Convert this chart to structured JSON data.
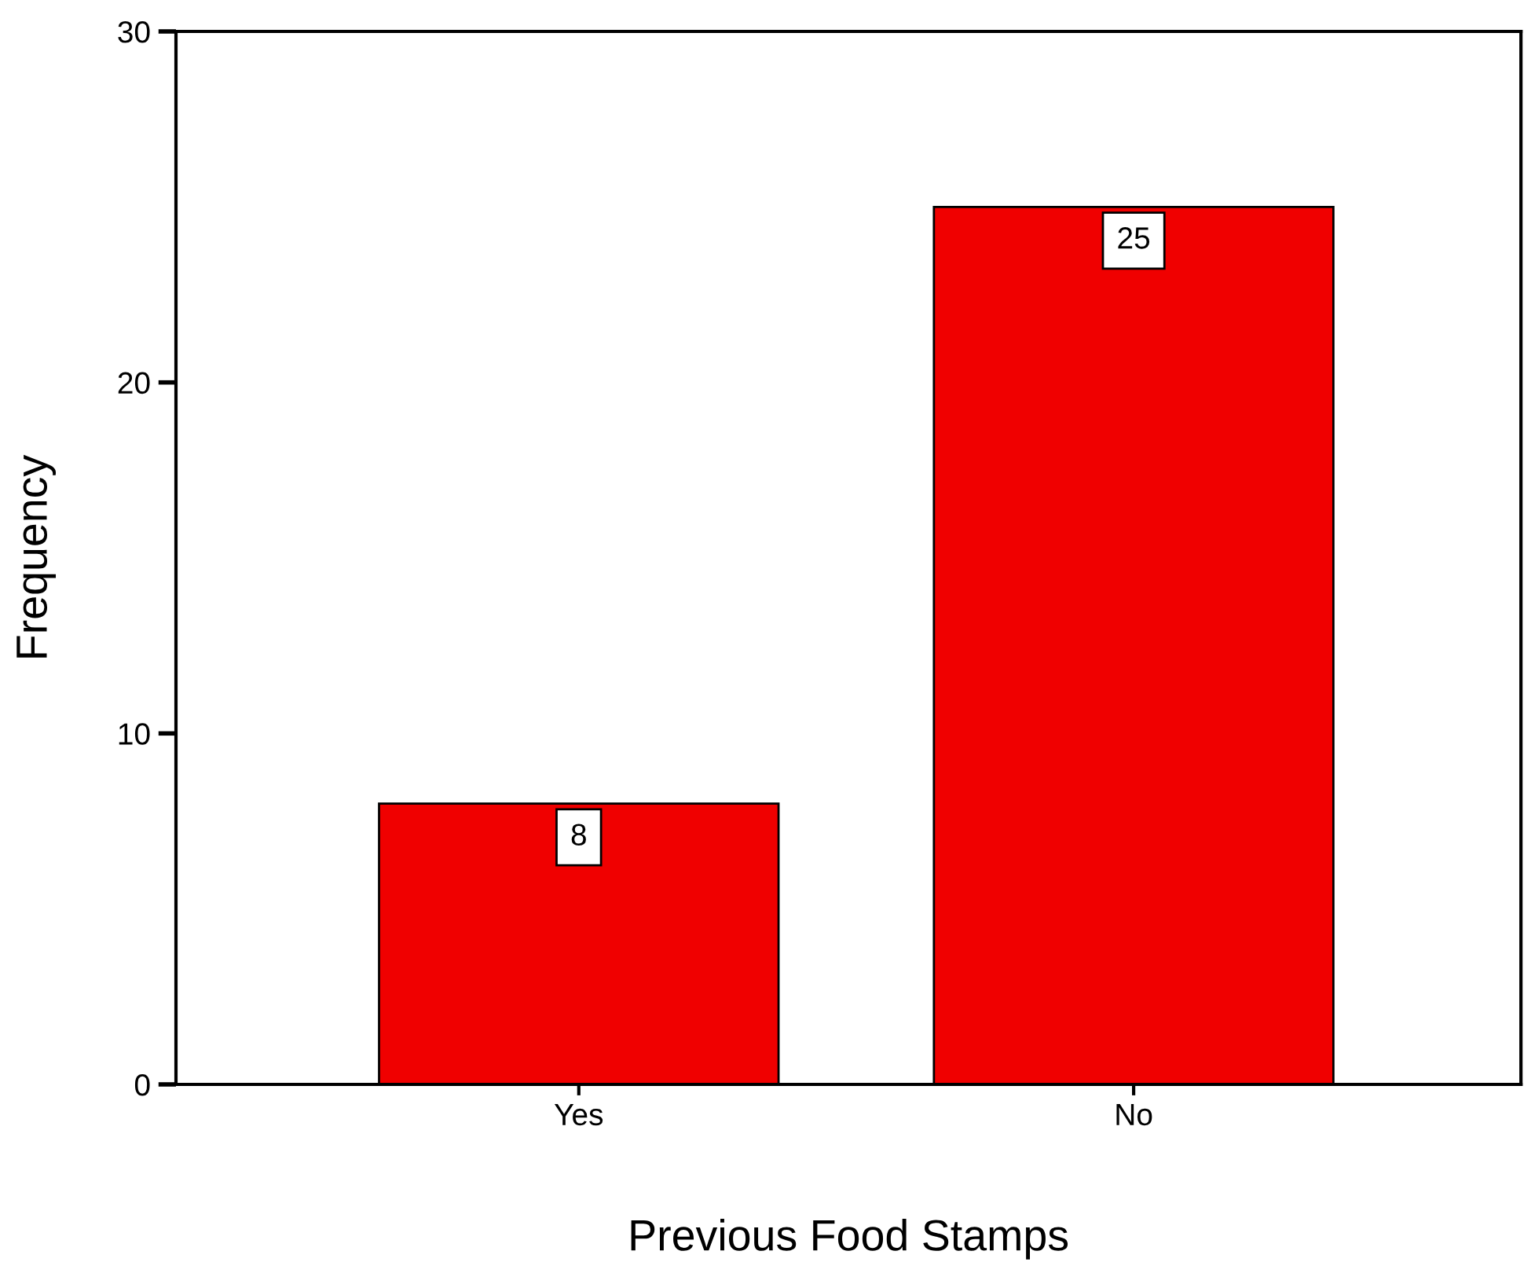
{
  "chart_data": {
    "type": "bar",
    "xlabel": "Previous Food Stamps",
    "ylabel": "Frequency",
    "categories": [
      "Yes",
      "No"
    ],
    "values": [
      8,
      25
    ],
    "color": "#f00000",
    "ylim": [
      0,
      30
    ],
    "yticks": [
      0,
      10,
      20,
      30
    ],
    "data_labels": true,
    "grid": false
  }
}
